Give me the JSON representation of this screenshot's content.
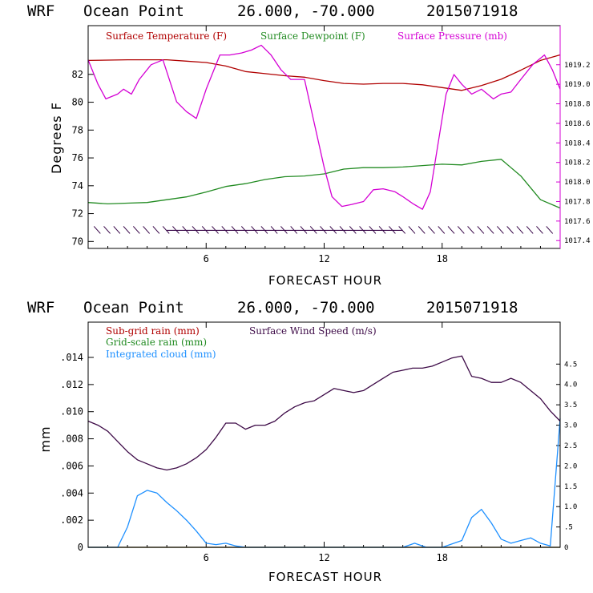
{
  "chart_data": [
    {
      "type": "line",
      "header": {
        "model": "WRF",
        "station": "Ocean Point",
        "coords": "26.000, -70.000",
        "init": "2015071918"
      },
      "xlabel": "FORECAST HOUR",
      "ylabel": "Degrees F",
      "xlim": [
        0,
        24
      ],
      "xticks": [
        6,
        12,
        18
      ],
      "ylim": [
        69.5,
        85.5
      ],
      "yticks": [
        70,
        72,
        74,
        76,
        78,
        80,
        82
      ],
      "right_axis": {
        "color": "#d400d4",
        "ylim": [
          1017.32,
          1019.6
        ],
        "ticks": [
          "1017.4",
          "1017.6",
          "1017.8",
          "1018.0",
          "1018.2",
          "1018.4",
          "1018.6",
          "1018.8",
          "1019.0",
          "1019.2"
        ]
      },
      "legend": [
        "Surface Temperature (F)",
        "Surface Dewpoint (F)",
        "Surface Pressure (mb)"
      ],
      "series": [
        {
          "name": "Surface Temperature (F)",
          "axis": "left",
          "color": "#b00000",
          "x": [
            0,
            2,
            4,
            5,
            6,
            7,
            8,
            9,
            10,
            11,
            12,
            13,
            14,
            15,
            16,
            17,
            18,
            19,
            20,
            21,
            22,
            23,
            24
          ],
          "y": [
            83,
            83.05,
            83.05,
            82.95,
            82.85,
            82.6,
            82.2,
            82.05,
            81.9,
            81.8,
            81.55,
            81.35,
            81.3,
            81.35,
            81.35,
            81.25,
            81.05,
            80.85,
            81.2,
            81.65,
            82.3,
            83.0,
            83.4
          ]
        },
        {
          "name": "Surface Dewpoint (F)",
          "axis": "left",
          "color": "#228b22",
          "x": [
            0,
            1,
            2,
            3,
            4,
            5,
            6,
            7,
            8,
            9,
            10,
            11,
            12,
            13,
            14,
            15,
            16,
            17,
            18,
            19,
            20,
            21,
            22,
            23,
            24
          ],
          "y": [
            72.8,
            72.7,
            72.75,
            72.8,
            73.0,
            73.2,
            73.55,
            73.95,
            74.15,
            74.45,
            74.65,
            74.7,
            74.85,
            75.2,
            75.3,
            75.3,
            75.35,
            75.45,
            75.55,
            75.5,
            75.75,
            75.9,
            74.7,
            73.0,
            72.4
          ]
        },
        {
          "name": "Surface Pressure (mb)",
          "axis": "right",
          "color": "#d400d4",
          "x": [
            0,
            0.5,
            0.9,
            1.5,
            1.8,
            2.2,
            2.6,
            3.2,
            3.8,
            4.5,
            5.0,
            5.5,
            6.0,
            6.7,
            7.2,
            7.8,
            8.3,
            8.8,
            9.3,
            9.8,
            10.3,
            11.0,
            11.5,
            12.0,
            12.4,
            12.9,
            13.4,
            14.0,
            14.5,
            15.0,
            15.6,
            16.0,
            16.5,
            17.0,
            17.4,
            17.8,
            18.2,
            18.6,
            19.0,
            19.5,
            20.0,
            20.6,
            21.0,
            21.5,
            22.0,
            22.6,
            23.2,
            23.6,
            24.0
          ],
          "y": [
            1019.25,
            1019.0,
            1018.85,
            1018.9,
            1018.95,
            1018.9,
            1019.05,
            1019.2,
            1019.25,
            1018.82,
            1018.72,
            1018.65,
            1018.95,
            1019.3,
            1019.3,
            1019.32,
            1019.35,
            1019.4,
            1019.3,
            1019.15,
            1019.05,
            1019.05,
            1018.6,
            1018.15,
            1017.85,
            1017.75,
            1017.77,
            1017.8,
            1017.92,
            1017.93,
            1017.9,
            1017.85,
            1017.78,
            1017.72,
            1017.9,
            1018.4,
            1018.9,
            1019.1,
            1019.0,
            1018.9,
            1018.95,
            1018.85,
            1018.9,
            1018.92,
            1019.05,
            1019.2,
            1019.3,
            1019.15,
            1018.95
          ]
        },
        {
          "name": "Surface Wind Barbs",
          "axis": "left",
          "color": "#330044",
          "level": 70.8,
          "x": [
            1,
            2,
            3,
            4,
            5,
            6,
            7,
            8,
            9,
            10,
            11,
            12,
            13,
            14,
            15,
            16,
            17,
            18,
            19,
            20,
            21,
            22,
            23
          ],
          "y": [
            0,
            0,
            0,
            0,
            0,
            0,
            0,
            0,
            0,
            0,
            0,
            0,
            0,
            0,
            0,
            0,
            0,
            0,
            0,
            0,
            0,
            0,
            0
          ]
        }
      ]
    },
    {
      "type": "line",
      "header": {
        "model": "WRF",
        "station": "Ocean Point",
        "coords": "26.000, -70.000",
        "init": "2015071918"
      },
      "xlabel": "FORECAST HOUR",
      "ylabel": "mm",
      "xlim": [
        0,
        24
      ],
      "xticks": [
        6,
        12,
        18
      ],
      "ylim": [
        0,
        0.0166
      ],
      "yticks": [
        "0",
        ".002",
        ".004",
        ".006",
        ".008",
        ".010",
        ".012",
        ".014"
      ],
      "right_axis": {
        "ylim": [
          0,
          5.53
        ],
        "ticks": [
          "0",
          ".5",
          "1.0",
          "1.5",
          "2.0",
          "2.5",
          "3.0",
          "3.5",
          "4.0",
          "4.5"
        ]
      },
      "legend": [
        "Sub-grid rain (mm)",
        "Grid-scale rain (mm)",
        "Integrated cloud (mm)",
        "Surface Wind Speed (m/s)"
      ],
      "series": [
        {
          "name": "Sub-grid rain (mm)",
          "axis": "left",
          "color": "#b00000",
          "x": [
            0,
            24
          ],
          "y": [
            0,
            0
          ]
        },
        {
          "name": "Grid-scale rain (mm)",
          "axis": "left",
          "color": "#228b22",
          "x": [
            0,
            24
          ],
          "y": [
            0,
            0
          ]
        },
        {
          "name": "Integrated cloud (mm)",
          "axis": "left",
          "color": "#1e90ff",
          "x": [
            0,
            1.5,
            2.0,
            2.5,
            3.0,
            3.5,
            4.0,
            4.5,
            5.0,
            5.5,
            6.0,
            6.5,
            7.0,
            7.5,
            8.0,
            10.0,
            14.0,
            16.0,
            16.6,
            17.2,
            18.0,
            19.0,
            19.5,
            20.0,
            20.5,
            21.0,
            21.5,
            22.0,
            22.5,
            23.0,
            23.5,
            24.0
          ],
          "y": [
            0,
            0,
            0.0015,
            0.0038,
            0.0042,
            0.004,
            0.0033,
            0.0027,
            0.002,
            0.0012,
            0.0003,
            0.0002,
            0.0003,
            0.0001,
            0,
            0,
            0,
            0,
            0.0003,
            0,
            0,
            0.0005,
            0.0022,
            0.0028,
            0.0018,
            0.0006,
            0.0003,
            0.0005,
            0.0007,
            0.0003,
            0.0001,
            0.0095
          ]
        },
        {
          "name": "Surface Wind Speed (m/s)",
          "axis": "right",
          "color": "#3d0a47",
          "x": [
            0,
            0.5,
            1.0,
            1.5,
            2.0,
            2.5,
            3.0,
            3.5,
            4.0,
            4.5,
            5.0,
            5.5,
            6.0,
            6.5,
            7.0,
            7.5,
            8.0,
            8.5,
            9.0,
            9.5,
            10.0,
            10.5,
            11.0,
            11.5,
            12.0,
            12.5,
            13.0,
            13.5,
            14.0,
            14.5,
            15.0,
            15.5,
            16.0,
            16.5,
            17.0,
            17.5,
            18.0,
            18.5,
            19.0,
            19.5,
            20.0,
            20.5,
            21.0,
            21.5,
            22.0,
            22.5,
            23.0,
            23.5,
            24.0
          ],
          "y": [
            3.1,
            3.0,
            2.85,
            2.6,
            2.35,
            2.15,
            2.05,
            1.95,
            1.9,
            1.95,
            2.05,
            2.2,
            2.4,
            2.7,
            3.05,
            3.05,
            2.9,
            3.0,
            3.0,
            3.1,
            3.3,
            3.45,
            3.55,
            3.6,
            3.75,
            3.9,
            3.85,
            3.8,
            3.85,
            4.0,
            4.15,
            4.3,
            4.35,
            4.4,
            4.4,
            4.45,
            4.55,
            4.65,
            4.7,
            4.2,
            4.15,
            4.05,
            4.05,
            4.15,
            4.05,
            3.85,
            3.65,
            3.35,
            3.1
          ]
        }
      ]
    }
  ]
}
